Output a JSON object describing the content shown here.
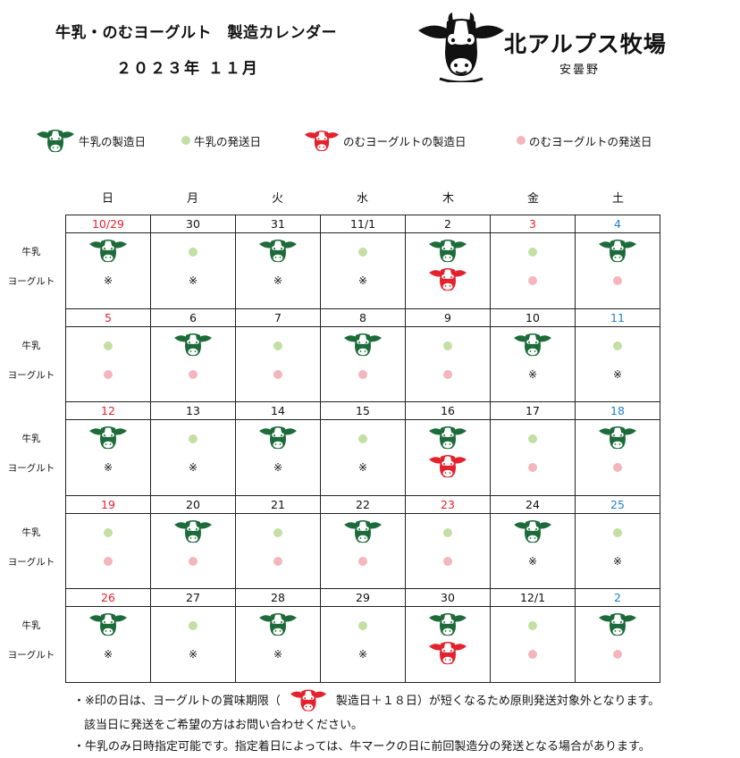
{
  "header": {
    "title": "牛乳・のむヨーグルト　製造カレンダー",
    "subtitle": "２０２３年 １１月"
  },
  "logo": {
    "brand": "北アルプス牧場",
    "sub": "安曇野",
    "icon": "cow-head-icon"
  },
  "legend": [
    {
      "mark": "green-cow",
      "label": "牛乳の製造日"
    },
    {
      "mark": "green-dot",
      "label": "牛乳の発送日"
    },
    {
      "mark": "red-cow",
      "label": "のむヨーグルトの製造日"
    },
    {
      "mark": "pink-dot",
      "label": "のむヨーグルトの発送日"
    }
  ],
  "weekdays": [
    "日",
    "月",
    "火",
    "水",
    "木",
    "金",
    "土"
  ],
  "row_labels": {
    "milk": "牛乳",
    "yogurt": "ヨーグルト"
  },
  "calendar": {
    "weeks": [
      [
        {
          "date": "10/29",
          "color": "red",
          "milk": "cow",
          "yogurt": "kome"
        },
        {
          "date": "30",
          "color": "black",
          "milk": "dot",
          "yogurt": "kome"
        },
        {
          "date": "31",
          "color": "black",
          "milk": "cow",
          "yogurt": "kome"
        },
        {
          "date": "11/1",
          "color": "black",
          "milk": "dot",
          "yogurt": "kome"
        },
        {
          "date": "2",
          "color": "black",
          "milk": "cow",
          "yogurt": "cow"
        },
        {
          "date": "3",
          "color": "red",
          "milk": "dot",
          "yogurt": "dot"
        },
        {
          "date": "4",
          "color": "blue",
          "milk": "cow",
          "yogurt": "dot"
        }
      ],
      [
        {
          "date": "5",
          "color": "red",
          "milk": "dot",
          "yogurt": "dot"
        },
        {
          "date": "6",
          "color": "black",
          "milk": "cow",
          "yogurt": "dot"
        },
        {
          "date": "7",
          "color": "black",
          "milk": "dot",
          "yogurt": "dot"
        },
        {
          "date": "8",
          "color": "black",
          "milk": "cow",
          "yogurt": "dot"
        },
        {
          "date": "9",
          "color": "black",
          "milk": "dot",
          "yogurt": "dot"
        },
        {
          "date": "10",
          "color": "black",
          "milk": "cow",
          "yogurt": "kome"
        },
        {
          "date": "11",
          "color": "blue",
          "milk": "dot",
          "yogurt": "kome"
        }
      ],
      [
        {
          "date": "12",
          "color": "red",
          "milk": "cow",
          "yogurt": "kome"
        },
        {
          "date": "13",
          "color": "black",
          "milk": "dot",
          "yogurt": "kome"
        },
        {
          "date": "14",
          "color": "black",
          "milk": "cow",
          "yogurt": "kome"
        },
        {
          "date": "15",
          "color": "black",
          "milk": "dot",
          "yogurt": "kome"
        },
        {
          "date": "16",
          "color": "black",
          "milk": "cow",
          "yogurt": "cow"
        },
        {
          "date": "17",
          "color": "black",
          "milk": "dot",
          "yogurt": "dot"
        },
        {
          "date": "18",
          "color": "blue",
          "milk": "cow",
          "yogurt": "dot"
        }
      ],
      [
        {
          "date": "19",
          "color": "red",
          "milk": "dot",
          "yogurt": "dot"
        },
        {
          "date": "20",
          "color": "black",
          "milk": "cow",
          "yogurt": "dot"
        },
        {
          "date": "21",
          "color": "black",
          "milk": "dot",
          "yogurt": "dot"
        },
        {
          "date": "22",
          "color": "black",
          "milk": "cow",
          "yogurt": "dot"
        },
        {
          "date": "23",
          "color": "red",
          "milk": "dot",
          "yogurt": "dot"
        },
        {
          "date": "24",
          "color": "black",
          "milk": "cow",
          "yogurt": "kome"
        },
        {
          "date": "25",
          "color": "blue",
          "milk": "dot",
          "yogurt": "kome"
        }
      ],
      [
        {
          "date": "26",
          "color": "red",
          "milk": "cow",
          "yogurt": "kome"
        },
        {
          "date": "27",
          "color": "black",
          "milk": "dot",
          "yogurt": "kome"
        },
        {
          "date": "28",
          "color": "black",
          "milk": "cow",
          "yogurt": "kome"
        },
        {
          "date": "29",
          "color": "black",
          "milk": "dot",
          "yogurt": "kome"
        },
        {
          "date": "30",
          "color": "black",
          "milk": "cow",
          "yogurt": "cow"
        },
        {
          "date": "12/1",
          "color": "black",
          "milk": "dot",
          "yogurt": "dot"
        },
        {
          "date": "2",
          "color": "blue",
          "milk": "cow",
          "yogurt": "dot"
        }
      ]
    ]
  },
  "symbols": {
    "kome": "※"
  },
  "colors": {
    "milk_cow": "#1d6b3a",
    "yogurt_cow": "#e3222d",
    "milk_dot": "#c3dfa4",
    "yogurt_dot": "#f4b6bd",
    "sunday_holiday": "#e8212e",
    "saturday": "#1f7fd1"
  },
  "notes": {
    "line1_before": "・※印の日は、ヨーグルトの賞味期限（",
    "line1_after": "製造日＋１８日）が短くなるため原則発送対象外となります。",
    "line2": "該当日に発送をご希望の方はお問い合わせください。",
    "line3": "・牛乳のみ日時指定可能です。指定着日によっては、牛マークの日に前回製造分の発送となる場合があります。"
  }
}
